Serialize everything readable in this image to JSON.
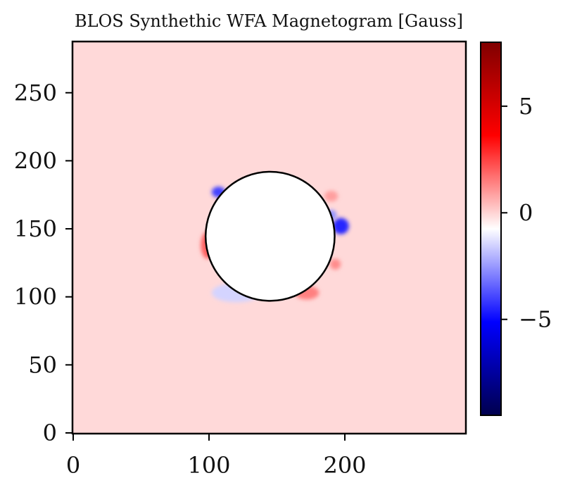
{
  "chart_data": {
    "type": "heatmap",
    "title": "BLOS Synthethic WFA Magnetogram [Gauss]",
    "xlabel": "",
    "ylabel": "",
    "xlim": [
      0,
      290
    ],
    "ylim": [
      0,
      290
    ],
    "x_ticks": [
      0,
      100,
      200
    ],
    "y_ticks": [
      0,
      50,
      100,
      150,
      200,
      250
    ],
    "background_value": 0.6,
    "colormap": "seismic",
    "colorbar": {
      "vmin": -9.5,
      "vmax": 8.0,
      "ticks": [
        5,
        0,
        -5
      ],
      "tick_labels": [
        "5",
        "0",
        "−5"
      ],
      "placement": "right"
    },
    "occulting_disk": {
      "center": [
        145,
        144.5
      ],
      "radius": 47.5
    },
    "features": [
      {
        "x": 107,
        "y": 177,
        "value": -3.5,
        "rx": 5,
        "ry": 4
      },
      {
        "x": 197,
        "y": 152,
        "value": -4.0,
        "rx": 6,
        "ry": 6
      },
      {
        "x": 190,
        "y": 160,
        "value": -2.0,
        "rx": 4,
        "ry": 4
      },
      {
        "x": 99,
        "y": 138,
        "value": 2.5,
        "rx": 5,
        "ry": 10
      },
      {
        "x": 172,
        "y": 103,
        "value": 2.0,
        "rx": 9,
        "ry": 5
      },
      {
        "x": 193,
        "y": 124,
        "value": 1.8,
        "rx": 4,
        "ry": 4
      },
      {
        "x": 190,
        "y": 174,
        "value": 1.5,
        "rx": 5,
        "ry": 4
      },
      {
        "x": 120,
        "y": 103,
        "value": -0.8,
        "rx": 18,
        "ry": 7
      }
    ]
  }
}
